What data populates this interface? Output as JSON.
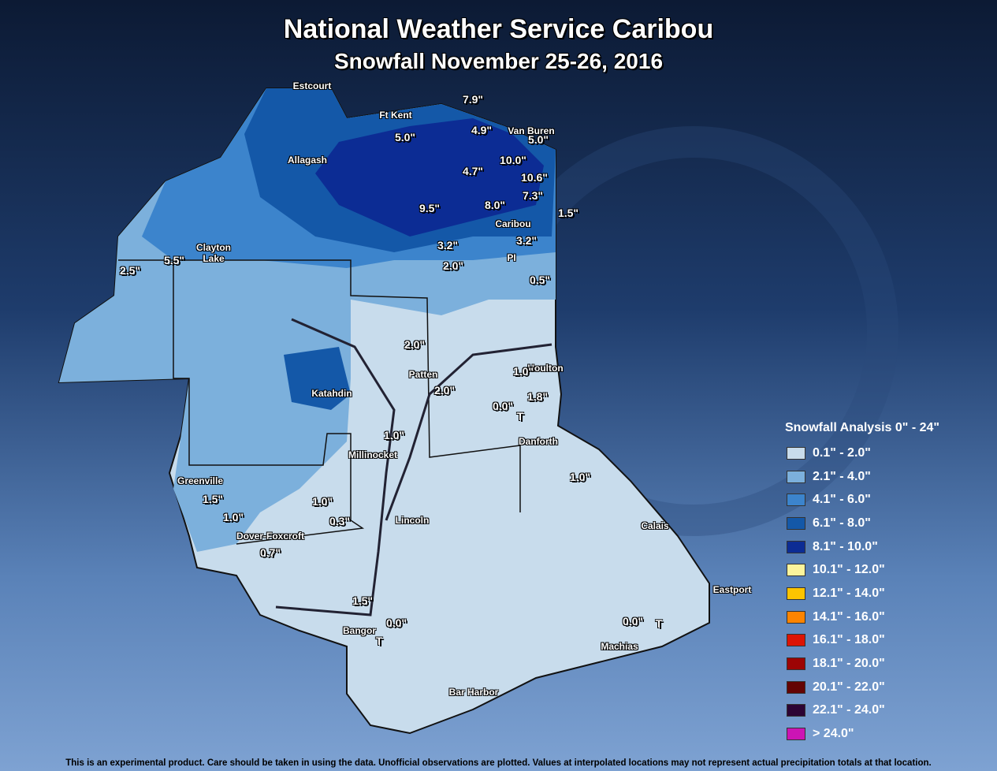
{
  "header": {
    "title": "National Weather Service Caribou",
    "subtitle": "Snowfall November 25-26, 2016"
  },
  "places": [
    "Estcourt",
    "Ft Kent",
    "Van Buren",
    "Allagash",
    "Caribou",
    "Clayton\nLake",
    "PI",
    "Houlton",
    "Patten",
    "Katahdin",
    "Millinocket",
    "Danforth",
    "Greenville",
    "Lincoln",
    "Calais",
    "Dover-Foxcroft",
    "Eastport",
    "Bangor",
    "Machias",
    "Bar Harbor"
  ],
  "observations": [
    "7.9\"",
    "4.9\"",
    "5.0\"",
    "5.0\"",
    "10.0\"",
    "4.7\"",
    "10.6\"",
    "7.3\"",
    "9.5\"",
    "8.0\"",
    "1.5\"",
    "3.2\"",
    "3.2\"",
    "2.0\"",
    "0.5\"",
    "5.5\"",
    "2.5\"",
    "2.0\"",
    "1.0\"",
    "2.0\"",
    "1.8\"",
    "0.0\"",
    "T",
    "1.0\"",
    "1.0\"",
    "1.5\"",
    "1.0\"",
    "1.0\"",
    "0.3\"",
    "0.7\"",
    "1.5\"",
    "0.0\"",
    "T",
    "0.0\"",
    "T"
  ],
  "legend": {
    "title": "Snowfall Analysis 0\" - 24\"",
    "items": [
      {
        "label": "0.1\" - 2.0\"",
        "color": "#c8dcec"
      },
      {
        "label": "2.1\" - 4.0\"",
        "color": "#7cb0dc"
      },
      {
        "label": "4.1\" - 6.0\"",
        "color": "#3c84cc"
      },
      {
        "label": "6.1\" - 8.0\"",
        "color": "#1458a8"
      },
      {
        "label": "8.1\" - 10.0\"",
        "color": "#0c2c94"
      },
      {
        "label": "10.1\" - 12.0\"",
        "color": "#fcf49c"
      },
      {
        "label": "12.1\" - 14.0\"",
        "color": "#fcc400"
      },
      {
        "label": "14.1\" - 16.0\"",
        "color": "#fc8400"
      },
      {
        "label": "16.1\" - 18.0\"",
        "color": "#dc1404"
      },
      {
        "label": "18.1\" - 20.0\"",
        "color": "#9c0404"
      },
      {
        "label": "20.1\" - 22.0\"",
        "color": "#640404"
      },
      {
        "label": "22.1\" - 24.0\"",
        "color": "#2c0434"
      },
      {
        "label": "> 24.0\"",
        "color": "#cc14b4"
      }
    ]
  },
  "footer": "This is an experimental product. Care should be taken in using the data. Unofficial observations are plotted. Values at interpolated locations may not represent actual precipitation totals at that location."
}
